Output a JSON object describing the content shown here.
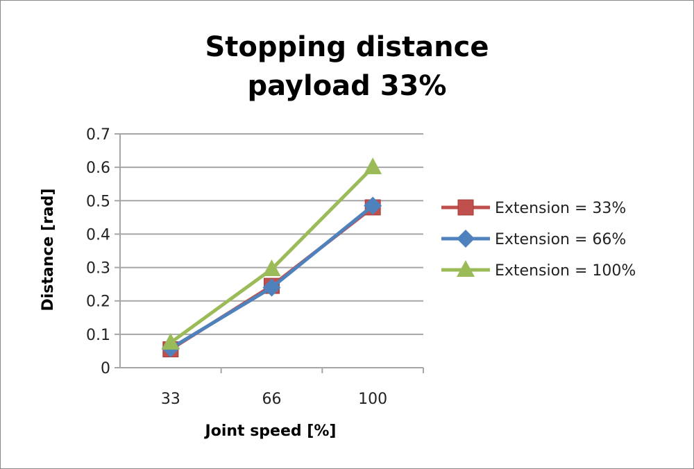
{
  "chart_data": {
    "type": "line",
    "title": "Stopping distance",
    "subtitle": "payload 33%",
    "xlabel": "Joint speed [%]",
    "ylabel": "Distance [rad]",
    "categories": [
      "33",
      "66",
      "100"
    ],
    "ylim": [
      0,
      0.7
    ],
    "yticks": [
      "0",
      "0.1",
      "0.2",
      "0.3",
      "0.4",
      "0.5",
      "0.6",
      "0.7"
    ],
    "grid": true,
    "legend_position": "right",
    "series": [
      {
        "name": "Extension = 33%",
        "values": [
          0.055,
          0.245,
          0.48
        ],
        "color": "#C0504D",
        "marker": "square"
      },
      {
        "name": "Extension = 66%",
        "values": [
          0.058,
          0.24,
          0.485
        ],
        "color": "#4F81BD",
        "marker": "diamond"
      },
      {
        "name": "Extension = 100%",
        "values": [
          0.075,
          0.295,
          0.6
        ],
        "color": "#9BBB59",
        "marker": "triangle"
      }
    ]
  }
}
